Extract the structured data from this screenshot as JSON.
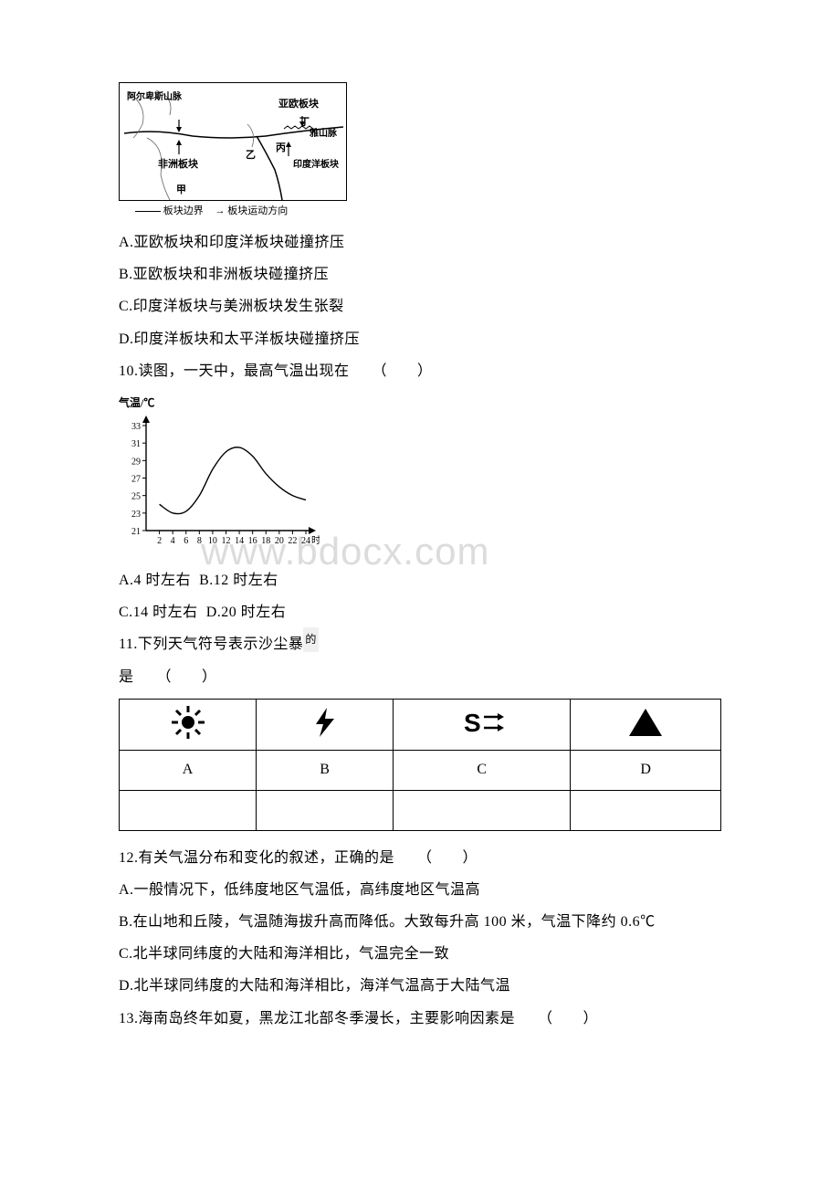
{
  "watermark": "www.bdocx.com",
  "watermark_color": "#dcdcdc",
  "watermark_fontsize": 42,
  "map": {
    "labels": {
      "eurasia": "亚欧板块",
      "africa": "非洲板块",
      "india": "印度洋板块",
      "alps": "阿尔卑斯山脉",
      "himalaya": "雅山脉",
      "ding": "丁",
      "bing": "丙",
      "yi": "乙",
      "jia": "甲"
    },
    "legend_boundary": "板块边界",
    "legend_direction": "板块运动方向"
  },
  "q9": {
    "A": "A.亚欧板块和印度洋板块碰撞挤压",
    "B": "B.亚欧板块和非洲板块碰撞挤压",
    "C": "C.印度洋板块与美洲板块发生张裂",
    "D": "D.印度洋板块和太平洋板块碰撞挤压"
  },
  "q10": {
    "text": "10.读图，一天中，最高气温出现在　　（　　）",
    "chart": {
      "type": "line",
      "ylabel": "气温/℃",
      "yticks": [
        21,
        23,
        25,
        27,
        29,
        31,
        33
      ],
      "xticks": [
        2,
        4,
        6,
        8,
        10,
        12,
        14,
        16,
        18,
        20,
        22,
        24
      ],
      "xunit": "时",
      "ylim": [
        21,
        33
      ],
      "xlim": [
        0,
        24
      ],
      "curve": [
        [
          2,
          24
        ],
        [
          4,
          23
        ],
        [
          6,
          23.2
        ],
        [
          8,
          25
        ],
        [
          10,
          28
        ],
        [
          12,
          30
        ],
        [
          14,
          30.5
        ],
        [
          16,
          29.5
        ],
        [
          18,
          27.5
        ],
        [
          20,
          26
        ],
        [
          22,
          25
        ],
        [
          24,
          24.5
        ]
      ],
      "line_color": "#000000",
      "line_width": 1.4,
      "background": "#ffffff",
      "axis_fontsize": 10
    },
    "A": "A.4 时左右",
    "B": "B.12 时左右",
    "C": "C.14 时左右",
    "D": "D.20 时左右"
  },
  "q11": {
    "text_main": "11.下列天气符号表示沙尘暴",
    "text_sup": "的",
    "text_line2": "是　　（　　）",
    "table": {
      "headers": [
        "A",
        "B",
        "C",
        "D"
      ],
      "icons": [
        "sun",
        "bolt",
        "sandstorm",
        "triangle"
      ],
      "icon_color": "#000000",
      "border_color": "#000000",
      "cell_height_icons": 56,
      "cell_height_labels": 44
    }
  },
  "q12": {
    "text": "12.有关气温分布和变化的叙述，正确的是　　（　　）",
    "A": "A.一般情况下，低纬度地区气温低，高纬度地区气温高",
    "B": "B.在山地和丘陵，气温随海拔升高而降低。大致每升高 100 米，气温下降约 0.6℃",
    "C": "C.北半球同纬度的大陆和海洋相比，气温完全一致",
    "D": "D.北半球同纬度的大陆和海洋相比，海洋气温高于大陆气温"
  },
  "q13": {
    "text": "13.海南岛终年如夏，黑龙江北部冬季漫长，主要影响因素是　　（　　）"
  },
  "text_color": "#000000",
  "font_size": 16,
  "line_height": 2.2
}
